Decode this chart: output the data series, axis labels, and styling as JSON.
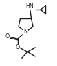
{
  "bg_color": "#ffffff",
  "line_color": "#1a1a1a",
  "line_width": 1.0,
  "font_size": 5.2,
  "figsize": [
    0.83,
    0.97
  ],
  "dpi": 100,
  "xlim": [
    0.0,
    10.0
  ],
  "ylim": [
    0.0,
    12.0
  ]
}
